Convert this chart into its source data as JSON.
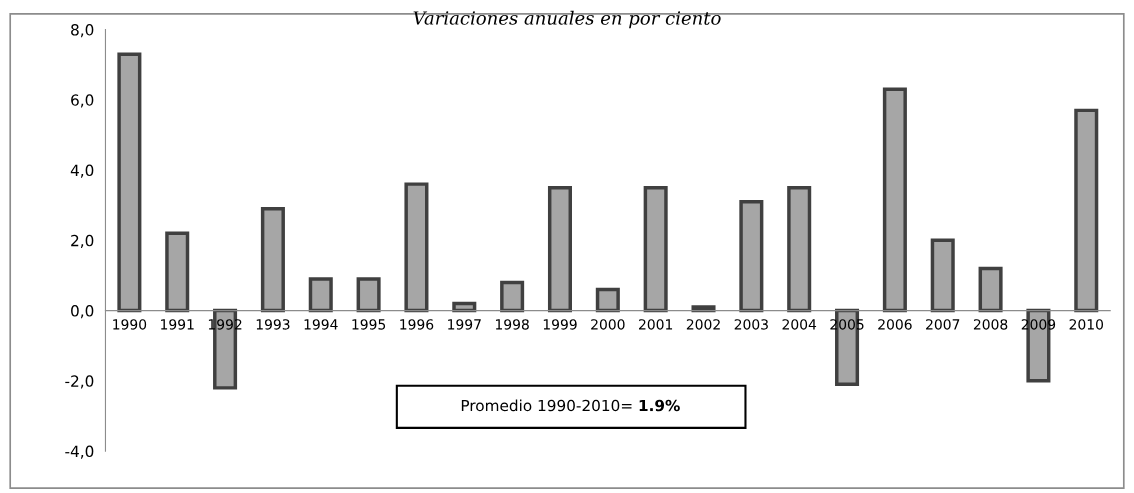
{
  "chart_data": {
    "type": "bar",
    "title": "Variaciones anuales en por ciento",
    "categories": [
      "1990",
      "1991",
      "1992",
      "1993",
      "1994",
      "1995",
      "1996",
      "1997",
      "1998",
      "1999",
      "2000",
      "2001",
      "2002",
      "2003",
      "2004",
      "2005",
      "2006",
      "2007",
      "2008",
      "2009",
      "2010"
    ],
    "values": [
      7.3,
      2.2,
      -2.2,
      2.9,
      0.9,
      0.9,
      3.6,
      0.2,
      0.8,
      3.5,
      0.6,
      3.5,
      0.1,
      3.1,
      3.5,
      -2.1,
      6.3,
      2.0,
      1.2,
      -2.0,
      5.7
    ],
    "color": "#a6a6a6",
    "ylim": [
      -4,
      8
    ],
    "yticks": [
      {
        "value": -4,
        "label": "-4,0"
      },
      {
        "value": -2,
        "label": "-2,0"
      },
      {
        "value": 0,
        "label": "0,0"
      },
      {
        "value": 2,
        "label": "2,0"
      },
      {
        "value": 4,
        "label": "4,0"
      },
      {
        "value": 6,
        "label": "6,0"
      },
      {
        "value": 8,
        "label": "8,0"
      }
    ],
    "grid": false,
    "legend": false,
    "annotations": [
      "Promedio 1990-2010= 1.9%"
    ]
  }
}
